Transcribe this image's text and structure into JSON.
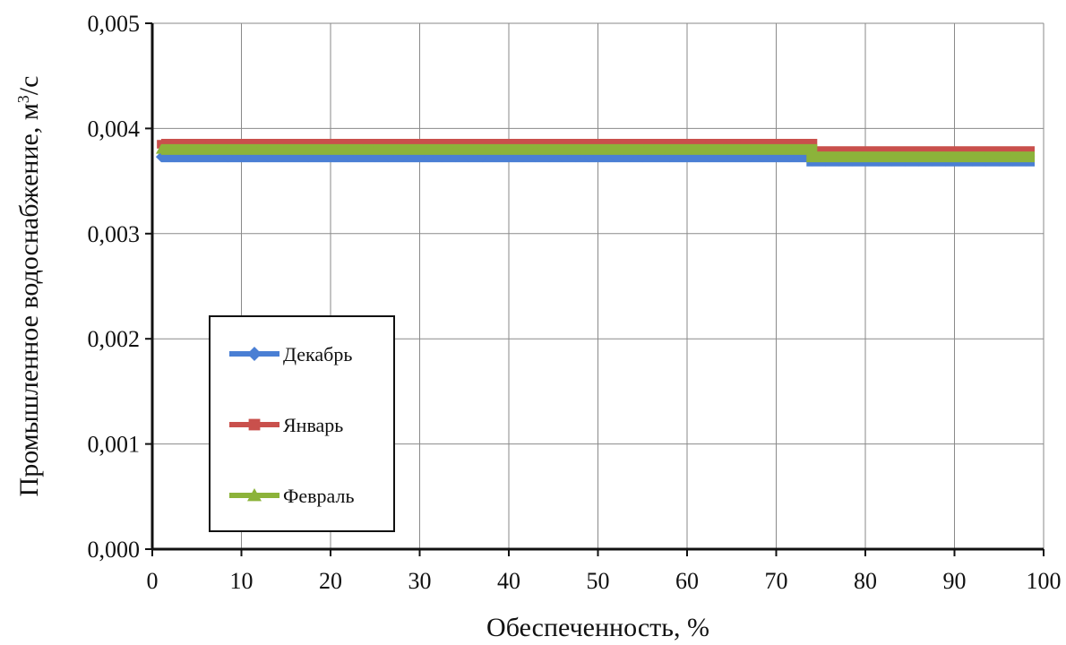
{
  "chart_data": {
    "type": "line",
    "xlabel": "Обеспеченность, %",
    "ylabel_main": "Промышленное водоснабжение, м",
    "ylabel_sup": "3",
    "ylabel_tail": "/с",
    "xlim": [
      0,
      100
    ],
    "ylim": [
      0.0,
      0.005
    ],
    "x_ticks": [
      0,
      10,
      20,
      30,
      40,
      50,
      60,
      70,
      80,
      90,
      100
    ],
    "x_tick_labels": [
      "0",
      "10",
      "20",
      "30",
      "40",
      "50",
      "60",
      "70",
      "80",
      "90",
      "100"
    ],
    "y_ticks": [
      0.0,
      0.001,
      0.002,
      0.003,
      0.004,
      0.005
    ],
    "y_tick_labels": [
      "0,000",
      "0,001",
      "0,002",
      "0,003",
      "0,004",
      "0,005"
    ],
    "grid": true,
    "legend_position": "left-center",
    "series": [
      {
        "name": "Декабрь",
        "color": "#4a7fd4",
        "marker": "diamond",
        "segments": [
          {
            "x_start": 1,
            "x_end": 74,
            "y": 0.00373
          },
          {
            "x_start": 74,
            "x_end": 99,
            "y": 0.00369
          }
        ]
      },
      {
        "name": "Январь",
        "color": "#c9504c",
        "marker": "square",
        "segments": [
          {
            "x_start": 1,
            "x_end": 74,
            "y": 0.00385
          },
          {
            "x_start": 74,
            "x_end": 99,
            "y": 0.00378
          }
        ]
      },
      {
        "name": "Февраль",
        "color": "#8cb33a",
        "marker": "triangle",
        "segments": [
          {
            "x_start": 1,
            "x_end": 74,
            "y": 0.0038
          },
          {
            "x_start": 74,
            "x_end": 99,
            "y": 0.00373
          }
        ]
      }
    ]
  }
}
